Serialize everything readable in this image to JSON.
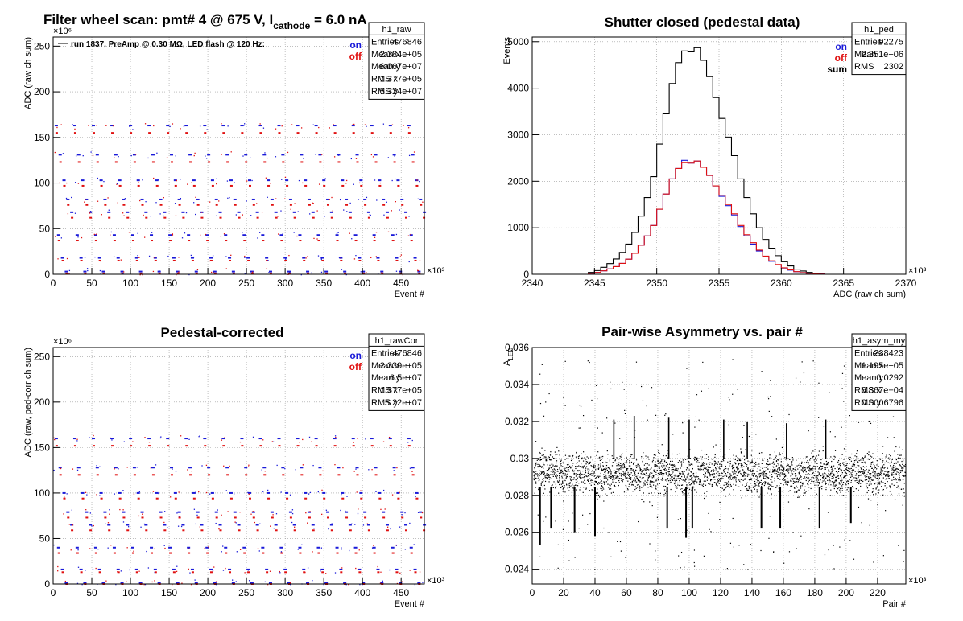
{
  "colors": {
    "on": "#1a1ad9",
    "off": "#e01010",
    "sum": "#000000",
    "frame": "#000000",
    "grid": "#999999"
  },
  "chart_data": [
    {
      "id": "raw",
      "type": "scatter",
      "title": "Filter wheel scan: pmt#   4 @   675 V, I",
      "title_sub": "cathode",
      "title_tail": " = 6.0 nA",
      "note": "run 1837, PreAmp @ 0.30 MΩ, LED flash @  120 Hz:",
      "xlabel": "Event #",
      "ylabel": "ADC (raw ch sum)",
      "x_exponent": "×10³",
      "y_exponent": "×10⁶",
      "xlim": [
        0,
        480
      ],
      "ylim": [
        0,
        260
      ],
      "xticks": [
        0,
        50,
        100,
        150,
        200,
        250,
        300,
        350,
        400,
        450
      ],
      "yticks": [
        0,
        50,
        100,
        150,
        200,
        250
      ],
      "grid": true,
      "legend": [
        "on",
        "off"
      ],
      "stats": {
        "title": "h1_raw",
        "rows": [
          [
            "Entries",
            "476846"
          ],
          [
            "Mean x",
            "2.384e+05"
          ],
          [
            "Mean y",
            "6.067e+07"
          ],
          [
            "RMS x",
            "1.377e+05"
          ],
          [
            "RMS y",
            "5.324e+07"
          ]
        ]
      },
      "cycle_start": 0,
      "cycle_period": 24,
      "cycle_count": 20,
      "levels_on": [
        163,
        131,
        103,
        82,
        68,
        43,
        18,
        3
      ],
      "levels_off": [
        155,
        123,
        97,
        76,
        62,
        37,
        15,
        1
      ]
    },
    {
      "id": "ped",
      "type": "line",
      "title": "Shutter closed (pedestal data)",
      "xlabel": "ADC (raw ch sum)",
      "ylabel": "Events",
      "x_exponent": "×10³",
      "xlim": [
        2340,
        2370
      ],
      "ylim": [
        0,
        5100
      ],
      "xticks": [
        2340,
        2345,
        2350,
        2355,
        2360,
        2365,
        2370
      ],
      "yticks": [
        0,
        1000,
        2000,
        3000,
        4000,
        5000
      ],
      "grid": true,
      "legend": [
        "on",
        "off",
        "sum"
      ],
      "stats": {
        "title": "h1_ped",
        "rows": [
          [
            "Entries",
            "92275"
          ],
          [
            "Mean",
            "2.351e+06"
          ],
          [
            "RMS",
            "2302"
          ]
        ]
      },
      "bin_start": 2344.5,
      "bin_width": 0.5,
      "series": [
        {
          "name": "sum",
          "values": [
            40,
            80,
            150,
            230,
            330,
            470,
            650,
            900,
            1250,
            1650,
            2100,
            2800,
            3450,
            4100,
            4550,
            4800,
            4780,
            4870,
            4600,
            4250,
            3800,
            3350,
            2950,
            2550,
            2050,
            1650,
            1300,
            1000,
            750,
            560,
            400,
            270,
            180,
            110,
            70,
            40,
            20,
            10
          ]
        },
        {
          "name": "on",
          "values": [
            20,
            40,
            75,
            115,
            165,
            235,
            325,
            450,
            625,
            825,
            1050,
            1400,
            1725,
            2050,
            2275,
            2450,
            2390,
            2435,
            2300,
            2125,
            1900,
            1675,
            1475,
            1275,
            1025,
            825,
            650,
            500,
            375,
            280,
            200,
            135,
            90,
            55,
            35,
            20,
            10,
            5
          ]
        },
        {
          "name": "off",
          "values": [
            20,
            40,
            75,
            115,
            165,
            235,
            325,
            450,
            625,
            825,
            1050,
            1400,
            1725,
            2050,
            2275,
            2400,
            2390,
            2435,
            2300,
            2125,
            1900,
            1700,
            1500,
            1300,
            1050,
            850,
            680,
            520,
            390,
            290,
            210,
            140,
            95,
            58,
            36,
            21,
            11,
            5
          ]
        }
      ]
    },
    {
      "id": "rawcor",
      "type": "scatter",
      "title": "Pedestal-corrected",
      "xlabel": "Event #",
      "ylabel": "ADC (raw, ped-corr ch sum)",
      "x_exponent": "×10³",
      "y_exponent": "×10⁶",
      "xlim": [
        0,
        480
      ],
      "ylim": [
        0,
        260
      ],
      "xticks": [
        0,
        50,
        100,
        150,
        200,
        250,
        300,
        350,
        400,
        450
      ],
      "yticks": [
        0,
        50,
        100,
        150,
        200,
        250
      ],
      "grid": true,
      "legend": [
        "on",
        "off"
      ],
      "stats": {
        "title": "h1_rawCor",
        "rows": [
          [
            "Entries",
            "476846"
          ],
          [
            "Mean x",
            "2.339e+05"
          ],
          [
            "Mean y",
            "6.5e+07"
          ],
          [
            "RMS x",
            "1.377e+05"
          ],
          [
            "RMS y",
            "5.22e+07"
          ]
        ]
      },
      "cycle_start": 0,
      "cycle_period": 24,
      "cycle_count": 20,
      "levels_on": [
        160,
        128,
        100,
        79,
        65,
        40,
        16,
        1
      ],
      "levels_off": [
        152,
        120,
        94,
        73,
        59,
        34,
        13,
        0
      ]
    },
    {
      "id": "asym",
      "type": "scatter",
      "title": "Pair-wise Asymmetry vs. pair #",
      "xlabel": "Pair #",
      "ylabel": "A",
      "ylabel_sub": "LED",
      "x_exponent": "×10³",
      "xlim": [
        0,
        238
      ],
      "ylim": [
        0.0232,
        0.036
      ],
      "xticks": [
        0,
        20,
        40,
        60,
        80,
        100,
        120,
        140,
        160,
        180,
        200,
        220
      ],
      "yticks": [
        0.024,
        0.026,
        0.028,
        0.03,
        0.032,
        0.034,
        0.036
      ],
      "grid": true,
      "stats": {
        "title": "h1_asym_my",
        "rows": [
          [
            "Entries",
            "238423"
          ],
          [
            "Mean x",
            "1.195e+05"
          ],
          [
            "Mean y",
            "0.0292"
          ],
          [
            "RMS x",
            "6.867e+04"
          ],
          [
            "RMS y",
            "0.0006796"
          ]
        ]
      },
      "band_center": 0.0292,
      "band_halfwidth": 0.00075,
      "spikes_down": [
        [
          5,
          0.0253
        ],
        [
          12,
          0.0262
        ],
        [
          27,
          0.026
        ],
        [
          40,
          0.0258
        ],
        [
          86,
          0.0262
        ],
        [
          98,
          0.0257
        ],
        [
          102,
          0.0262
        ],
        [
          146,
          0.0262
        ],
        [
          158,
          0.0262
        ],
        [
          183,
          0.0262
        ],
        [
          203,
          0.0265
        ]
      ],
      "spikes_up": [
        [
          52,
          0.0321
        ],
        [
          65,
          0.0323
        ],
        [
          87,
          0.0322
        ],
        [
          100,
          0.0321
        ],
        [
          122,
          0.0321
        ],
        [
          137,
          0.032
        ],
        [
          162,
          0.0319
        ],
        [
          187,
          0.0321
        ]
      ]
    }
  ]
}
